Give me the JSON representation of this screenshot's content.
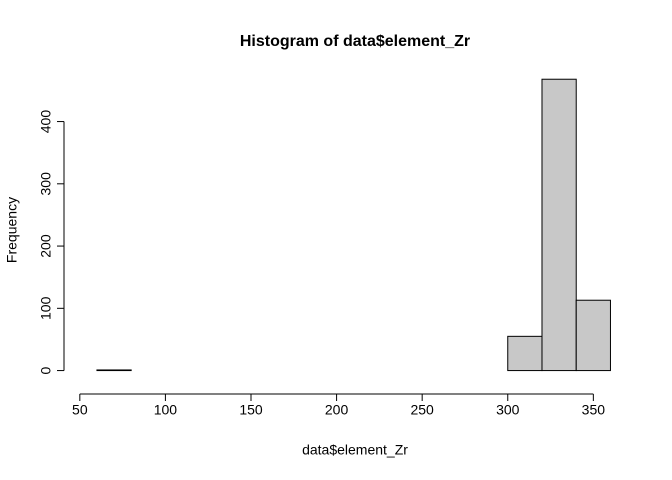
{
  "chart_data": {
    "type": "histogram",
    "title": "Histogram of data$element_Zr",
    "x_label": "data$element_Zr",
    "y_label": "Frequency",
    "bins": [
      60,
      80,
      100,
      120,
      140,
      160,
      180,
      200,
      220,
      240,
      260,
      280,
      300,
      320,
      340,
      360
    ],
    "values": [
      1,
      0,
      0,
      0,
      0,
      0,
      0,
      0,
      0,
      0,
      0,
      0,
      55,
      468,
      113
    ],
    "color": "#c8c8c8",
    "xlim": [
      48,
      372
    ],
    "xticks": [
      50,
      100,
      150,
      200,
      250,
      300,
      350
    ],
    "ylim": [
      -19,
      487
    ],
    "yticks": [
      0,
      100,
      200,
      300,
      400
    ]
  }
}
